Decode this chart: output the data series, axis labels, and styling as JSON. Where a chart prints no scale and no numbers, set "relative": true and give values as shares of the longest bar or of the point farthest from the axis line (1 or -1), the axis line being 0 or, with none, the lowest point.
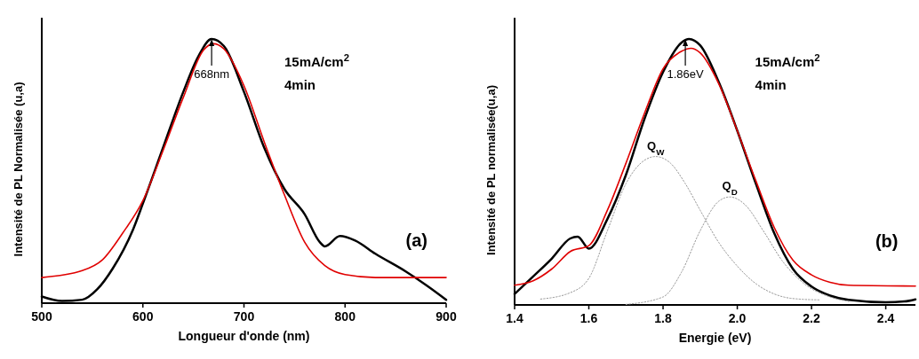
{
  "chart_data": [
    {
      "type": "line",
      "relative": true,
      "xlabel": "Longueur d'onde (nm)",
      "ylabel": "Intensité de PL Normalisée (u,a)",
      "xlim": [
        500,
        900
      ],
      "xticks": [
        500,
        600,
        700,
        800,
        900
      ],
      "annotations": [
        {
          "text": "668nm",
          "x": 668,
          "y": 1
        },
        "15mA/cm$^{2}$",
        "4min",
        "(a)"
      ],
      "series": [
        {
          "color": "#000000",
          "x": [
            500,
            520,
            540,
            555,
            570,
            590,
            600,
            620,
            640,
            655,
            668,
            680,
            700,
            720,
            740,
            760,
            775,
            780,
            795,
            810,
            830,
            860,
            880,
            900
          ],
          "values": [
            0.025,
            0.008,
            0.013,
            0.053,
            0.13,
            0.276,
            0.377,
            0.589,
            0.8,
            0.935,
            1.0,
            0.974,
            0.8,
            0.589,
            0.432,
            0.337,
            0.231,
            0.215,
            0.254,
            0.237,
            0.187,
            0.12,
            0.069,
            0.013
          ]
        },
        {
          "color": "#e00000",
          "x": [
            500,
            540,
            560,
            580,
            600,
            620,
            640,
            660,
            670,
            680,
            700,
            720,
            740,
            760,
            780,
            800,
            830,
            900
          ],
          "values": [
            0.097,
            0.123,
            0.164,
            0.265,
            0.388,
            0.578,
            0.779,
            0.958,
            0.982,
            0.963,
            0.823,
            0.611,
            0.41,
            0.231,
            0.142,
            0.108,
            0.097,
            0.097
          ]
        }
      ]
    },
    {
      "type": "line",
      "relative": true,
      "xlabel": "Energie (eV)",
      "ylabel": "Intensité de PL normalisée(u,a)",
      "xlim": [
        1.4,
        2.48
      ],
      "xticks": [
        {
          "value": 1.4,
          "label": "1.4"
        },
        {
          "value": 1.6,
          "label": "1.6"
        },
        {
          "value": 1.8,
          "label": "1.8"
        },
        {
          "value": 2.0,
          "label": "2.0"
        },
        {
          "value": 2.2,
          "label": "2.2"
        },
        {
          "value": 2.4,
          "label": "2.4"
        }
      ],
      "annotations": [
        {
          "text": "1.86eV",
          "x": 1.86,
          "y": 1
        },
        "15mA/cm$^{2}$",
        "4min",
        "(b)"
      ],
      "series": [
        {
          "color": "#000000",
          "x": [
            1.4,
            1.45,
            1.5,
            1.55,
            1.57,
            1.6,
            1.65,
            1.7,
            1.75,
            1.8,
            1.85,
            1.87,
            1.9,
            1.95,
            2.0,
            2.05,
            2.1,
            2.15,
            2.2,
            2.25,
            2.3,
            2.4,
            2.45,
            2.48
          ],
          "values": [
            0.041,
            0.107,
            0.174,
            0.25,
            0.257,
            0.212,
            0.323,
            0.489,
            0.7,
            0.876,
            0.987,
            1.0,
            0.976,
            0.838,
            0.655,
            0.456,
            0.268,
            0.135,
            0.069,
            0.035,
            0.019,
            0.01,
            0.013,
            0.021
          ]
        },
        {
          "color": "#e00000",
          "x": [
            1.4,
            1.45,
            1.5,
            1.55,
            1.6,
            1.65,
            1.7,
            1.75,
            1.8,
            1.85,
            1.875,
            1.9,
            1.95,
            2.0,
            2.05,
            2.1,
            2.15,
            2.2,
            2.25,
            2.3,
            2.48
          ],
          "values": [
            0.074,
            0.091,
            0.135,
            0.201,
            0.223,
            0.356,
            0.533,
            0.721,
            0.888,
            0.954,
            0.965,
            0.948,
            0.832,
            0.655,
            0.467,
            0.29,
            0.168,
            0.113,
            0.085,
            0.074,
            0.071
          ]
        },
        {
          "name": "Q$_{W}$",
          "color": "#999999",
          "line_style": "dotted",
          "x": [
            1.47,
            1.55,
            1.6,
            1.65,
            1.7,
            1.75,
            1.78,
            1.82,
            1.86,
            1.9,
            1.95,
            2.0,
            2.05,
            2.1,
            2.15,
            2.22
          ],
          "values": [
            0.022,
            0.046,
            0.1,
            0.279,
            0.456,
            0.544,
            0.558,
            0.533,
            0.456,
            0.356,
            0.235,
            0.146,
            0.08,
            0.041,
            0.024,
            0.019
          ]
        },
        {
          "name": "Q$_{D}$",
          "color": "#999999",
          "line_style": "dotted",
          "x": [
            1.7,
            1.8,
            1.85,
            1.9,
            1.95,
            1.98,
            2.02,
            2.07,
            2.12,
            2.18,
            2.25,
            2.3
          ],
          "values": [
            0.002,
            0.03,
            0.124,
            0.279,
            0.39,
            0.406,
            0.378,
            0.279,
            0.168,
            0.08,
            0.03,
            0.013
          ]
        }
      ]
    }
  ]
}
